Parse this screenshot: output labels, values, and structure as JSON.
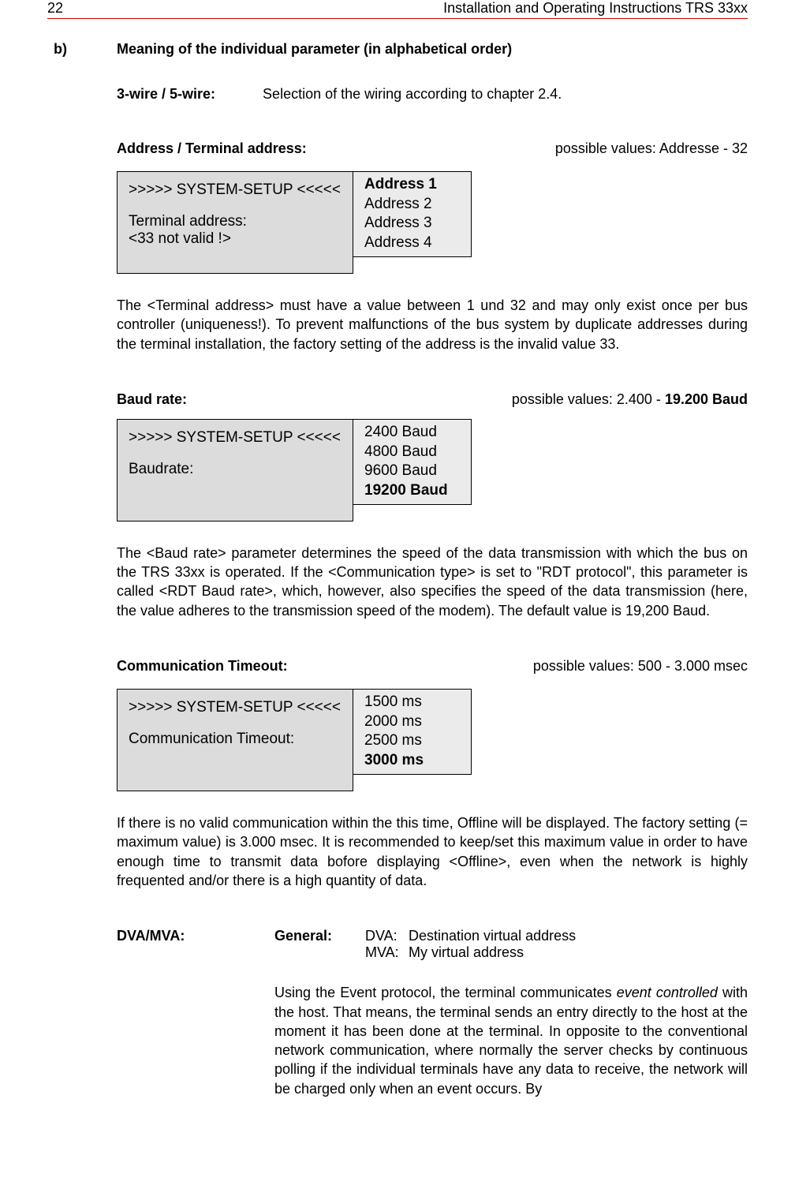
{
  "header": {
    "page_number": "22",
    "doc_title": "Installation  and Operating Instructions TRS 33xx"
  },
  "section_b": {
    "label": "b)",
    "title": "Meaning of the individual parameter (in alphabetical order)"
  },
  "wire": {
    "label": "3-wire / 5-wire:",
    "desc": "Selection of the wiring according to chapter 2.4."
  },
  "address": {
    "label": "Address / Terminal address:",
    "possible": "possible values: Addresse  - 32",
    "display_title": ">>>>> SYSTEM-SETUP <<<<<",
    "display_line1": "Terminal address:",
    "display_line2": "<33 not valid !>",
    "options": [
      "Address 1",
      "Address 2",
      "Address 3",
      "Address 4"
    ],
    "selected_index": 0,
    "body": "The <Terminal address> must have a value between 1 und 32 and may only exist once per bus controller (uniqueness!). To prevent malfunctions of the bus system by duplicate addresses during the terminal installation, the factory setting of the address is the invalid value 33."
  },
  "baud": {
    "label": "Baud rate:",
    "possible_prefix": "possible values: 2.400 - ",
    "possible_bold": "19.200 Baud",
    "display_title": ">>>>> SYSTEM-SETUP <<<<<",
    "display_line1": "Baudrate:",
    "options": [
      "2400 Baud",
      "4800 Baud",
      "9600 Baud",
      "19200 Baud"
    ],
    "selected_index": 3,
    "body": "The <Baud rate> parameter determines the speed of the data transmission with which the bus on the TRS  33xx is operated. If the <Communication type> is set to \"RDT protocol\", this parameter is called <RDT Baud rate>, which, however, also specifies the speed of the data transmission (here, the value adheres to the transmission speed of the modem). The default value is 19,200 Baud."
  },
  "timeout": {
    "label": "Communication Timeout:",
    "possible": "possible values: 500 - 3.000 msec",
    "display_title": ">>>>> SYSTEM-SETUP <<<<<",
    "display_line1": "Communication Timeout:",
    "options": [
      "1500 ms",
      "2000 ms",
      "2500 ms",
      "3000 ms"
    ],
    "selected_index": 3,
    "body": "If there is no valid communication within the this time, Offline will be displayed. The factory setting (= maximum value) is 3.000 msec. It is recommended to keep/set this maximum value in order to have enough time to transmit data bofore displaying <Offline>,  even when the network is highly frequented and/or there is a high quantity of data."
  },
  "dva": {
    "label": "DVA/MVA:",
    "general": "General:",
    "abbr_dva": "DVA:",
    "abbr_mva": "MVA:",
    "def_dva": "Destination virtual address",
    "def_mva": "My virtual address",
    "body_pre": "Using the Event protocol, the terminal communicates ",
    "body_italic": "event controlled",
    "body_post": " with the host. That means, the terminal sends an entry directly to the host at the moment it has been done at the terminal. In opposite to the conventional network communication, where normally the server checks by continuous polling if the individual terminals have any data to receive, the  network will be charged only when an event occurs. By"
  }
}
